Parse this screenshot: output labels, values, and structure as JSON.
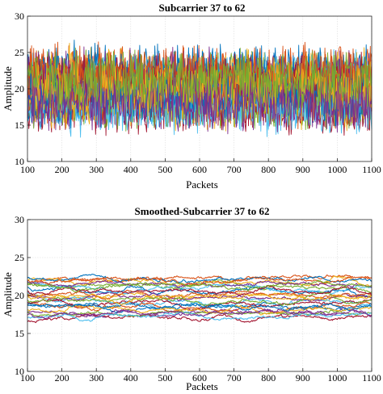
{
  "chart_data": [
    {
      "type": "line",
      "title": "Subcarrier 37 to 62",
      "xlabel": "Packets",
      "ylabel": "Amplitude",
      "xlim": [
        100,
        1100
      ],
      "ylim": [
        10,
        30
      ],
      "xticks": [
        "100",
        "200",
        "300",
        "400",
        "500",
        "600",
        "700",
        "800",
        "900",
        "1000",
        "1100"
      ],
      "yticks": [
        "10",
        "15",
        "20",
        "25",
        "30"
      ],
      "grid": true,
      "series_count": 26,
      "sample_step": 2,
      "series_mean_range": [
        17.5,
        22.5
      ],
      "noise_amplitude": 3.0,
      "smoothing": "none"
    },
    {
      "type": "line",
      "title": "Smoothed-Subcarrier 37 to 62",
      "xlabel": "Packets",
      "ylabel": "Amplitude",
      "xlim": [
        100,
        1100
      ],
      "ylim": [
        10,
        30
      ],
      "xticks": [
        "100",
        "200",
        "300",
        "400",
        "500",
        "600",
        "700",
        "800",
        "900",
        "1000",
        "1100"
      ],
      "yticks": [
        "10",
        "15",
        "20",
        "25",
        "30"
      ],
      "grid": true,
      "series_count": 26,
      "sample_step": 2,
      "series_mean_range": [
        17.0,
        22.5
      ],
      "noise_amplitude": 0.8,
      "smoothing": "moving-average"
    }
  ],
  "colors": [
    "#0072bd",
    "#d95319",
    "#edb120",
    "#7e2f8e",
    "#77ac30",
    "#4dbeee",
    "#a2142f"
  ]
}
